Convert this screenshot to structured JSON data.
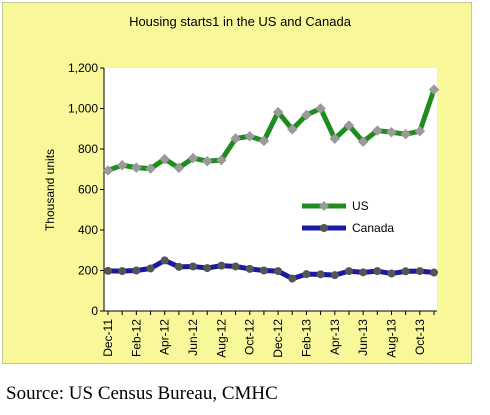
{
  "chart_data": {
    "type": "line",
    "title": "Housing starts1 in the US and Canada",
    "ylabel": "Thousand units",
    "xlabel": "",
    "ylim": [
      0,
      1200
    ],
    "yticks": [
      0,
      200,
      400,
      600,
      800,
      1000,
      1200
    ],
    "ytick_labels": [
      "0",
      "200",
      "400",
      "600",
      "800",
      "1,000",
      "1,200"
    ],
    "grid": false,
    "legend_position": "center-right",
    "background_color": "#F8F89A",
    "plot_background_color": "#FFFFFF",
    "months": [
      "Dec-11",
      "Jan-12",
      "Feb-12",
      "Mar-12",
      "Apr-12",
      "May-12",
      "Jun-12",
      "Jul-12",
      "Aug-12",
      "Sep-12",
      "Oct-12",
      "Nov-12",
      "Dec-12",
      "Jan-13",
      "Feb-13",
      "Mar-13",
      "Apr-13",
      "May-13",
      "Jun-13",
      "Jul-13",
      "Aug-13",
      "Sep-13",
      "Oct-13",
      "Nov-13"
    ],
    "tick_labels": [
      "Dec-11",
      "Feb-12",
      "Apr-12",
      "Jun-12",
      "Aug-12",
      "Oct-12",
      "Dec-12",
      "Feb-13",
      "Apr-13",
      "Jun-13",
      "Aug-13",
      "Oct-13"
    ],
    "series": [
      {
        "name": "US",
        "color": "#1E8C1E",
        "marker_color": "#9A9A9A",
        "marker": "diamond",
        "values": [
          694,
          720,
          708,
          703,
          750,
          707,
          755,
          740,
          745,
          852,
          863,
          840,
          982,
          897,
          968,
          1000,
          851,
          916,
          836,
          891,
          883,
          873,
          888,
          1093
        ]
      },
      {
        "name": "Canada",
        "color": "#1A1AA0",
        "marker_color": "#555555",
        "marker": "circle",
        "values": [
          198,
          197,
          200,
          210,
          250,
          218,
          220,
          212,
          224,
          220,
          208,
          200,
          197,
          160,
          182,
          181,
          177,
          197,
          191,
          197,
          185,
          196,
          197,
          190
        ]
      }
    ]
  },
  "source_note": "Source: US Census Bureau, CMHC"
}
